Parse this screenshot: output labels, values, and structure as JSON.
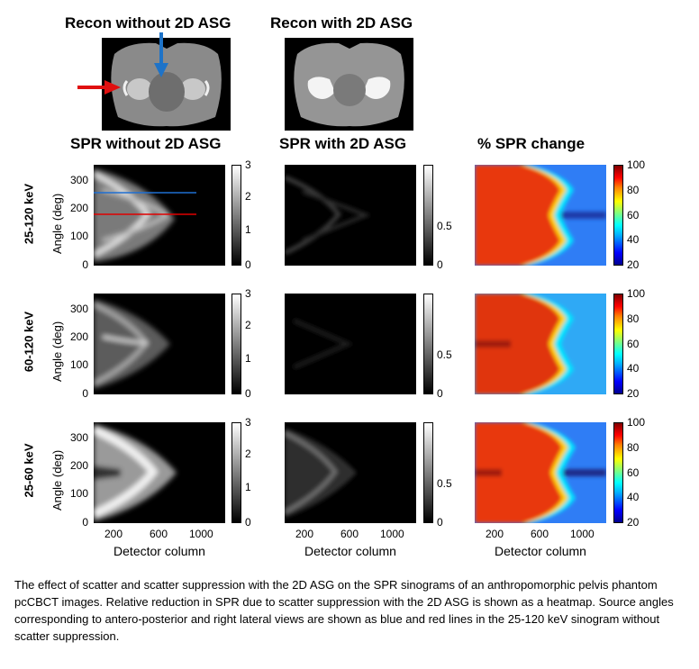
{
  "recon_titles": {
    "without": "Recon without 2D ASG",
    "with": "Recon with 2D ASG"
  },
  "column_titles": [
    "SPR without 2D ASG",
    "SPR with 2D ASG",
    "% SPR change"
  ],
  "rows": [
    {
      "label": "25-120 keV"
    },
    {
      "label": "60-120 keV"
    },
    {
      "label": "25-60 keV"
    }
  ],
  "axes": {
    "ylabel": "Angle (deg)",
    "xlabel": "Detector column",
    "yticks": [
      "300",
      "200",
      "100",
      "0"
    ],
    "xticks": [
      "200",
      "600",
      "1000"
    ]
  },
  "colorbars": {
    "spr_without": [
      "3",
      "2",
      "1",
      "0"
    ],
    "spr_with": [
      "0.5",
      "0"
    ],
    "change": [
      "100",
      "80",
      "60",
      "40",
      "20"
    ]
  },
  "colors": {
    "blue_line": "#1f6fd1",
    "red_line": "#e00000",
    "arrow_blue": "#1e73c8",
    "arrow_red": "#e01010"
  },
  "caption": "The effect of scatter and scatter suppression with the 2D ASG on the SPR sinograms of an anthropomorphic pelvis phantom pcCBCT images. Relative reduction in SPR due to scatter suppression with the 2D ASG is shown as a heatmap.  Source angles corresponding to antero-posterior and right lateral views are shown as blue and red lines in the 25-120 keV sinogram without scatter suppression."
}
